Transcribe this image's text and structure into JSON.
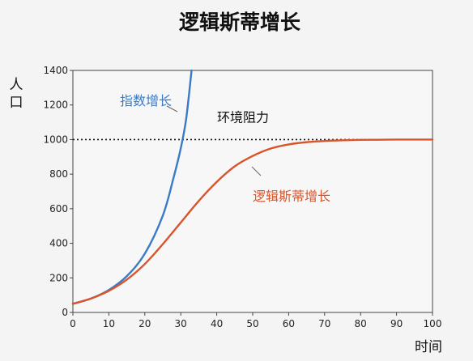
{
  "chart_data": {
    "type": "line",
    "title": "逻辑斯蒂增长",
    "xlabel": "时间",
    "ylabel": "人口",
    "xlim": [
      0,
      100
    ],
    "ylim": [
      0,
      1400
    ],
    "xticks": [
      0,
      10,
      20,
      30,
      40,
      50,
      60,
      70,
      80,
      90,
      100
    ],
    "yticks": [
      0,
      200,
      400,
      600,
      800,
      1000,
      1200,
      1400
    ],
    "grid": false,
    "series": [
      {
        "name": "指数增长",
        "color": "#3a7bc8",
        "x": [
          0,
          5,
          10,
          15,
          20,
          25,
          28,
          30,
          31.5,
          33
        ],
        "y": [
          50,
          80,
          130,
          210,
          340,
          560,
          780,
          950,
          1120,
          1400
        ]
      },
      {
        "name": "逻辑斯蒂增长",
        "color": "#d9542b",
        "x": [
          0,
          5,
          10,
          15,
          20,
          25,
          30,
          35,
          40,
          45,
          50,
          55,
          60,
          65,
          70,
          75,
          80,
          85,
          90,
          95,
          100
        ],
        "y": [
          50,
          80,
          125,
          190,
          280,
          395,
          520,
          645,
          755,
          845,
          905,
          948,
          972,
          985,
          992,
          996,
          998,
          999,
          1000,
          1000,
          1000
        ]
      }
    ],
    "reference_lines": [
      {
        "y": 1000,
        "label": "环境阻力",
        "style": "dotted"
      }
    ]
  }
}
